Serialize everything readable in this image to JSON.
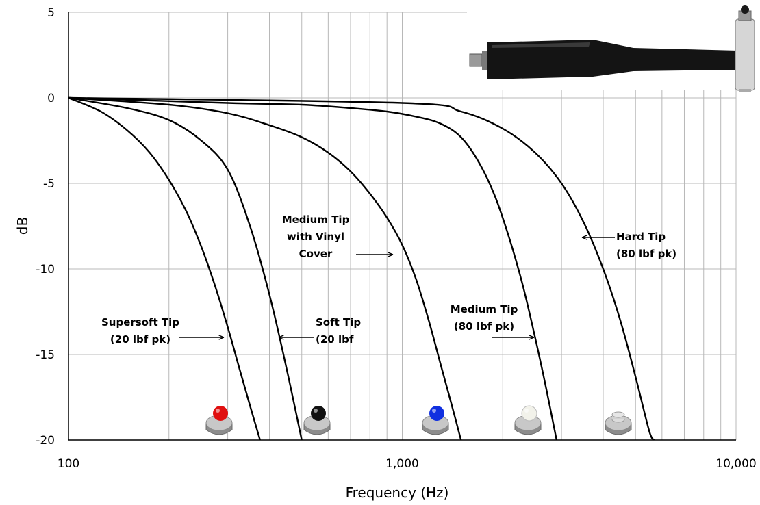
{
  "chart_data": {
    "type": "line",
    "xlabel": "Frequency (Hz)",
    "ylabel": "dB",
    "xscale": "log",
    "xlim": [
      100,
      10000
    ],
    "ylim": [
      -20,
      5
    ],
    "x_tick_labels": [
      "100",
      "1,000",
      "10,000"
    ],
    "y_tick_labels": [
      "5",
      "0",
      "-5",
      "-10",
      "-15",
      "-20"
    ],
    "grid": true,
    "series": [
      {
        "key": "supersoft",
        "label": [
          "Supersoft Tip",
          "(20 lbf pk)"
        ],
        "tip_color": "#e01010",
        "points": [
          [
            100,
            0
          ],
          [
            125,
            -0.8
          ],
          [
            150,
            -1.9
          ],
          [
            175,
            -3.2
          ],
          [
            200,
            -4.8
          ],
          [
            225,
            -6.6
          ],
          [
            250,
            -8.7
          ],
          [
            275,
            -11
          ],
          [
            300,
            -13.4
          ],
          [
            325,
            -15.8
          ],
          [
            350,
            -18
          ],
          [
            375,
            -20
          ]
        ]
      },
      {
        "key": "soft",
        "label": [
          "Soft Tip",
          "(20 lbf"
        ],
        "tip_color": "#111111",
        "points": [
          [
            100,
            0
          ],
          [
            150,
            -0.6
          ],
          [
            200,
            -1.3
          ],
          [
            250,
            -2.5
          ],
          [
            300,
            -4.2
          ],
          [
            350,
            -7.5
          ],
          [
            400,
            -11.5
          ],
          [
            450,
            -15.8
          ],
          [
            500,
            -20
          ]
        ]
      },
      {
        "key": "vinyl",
        "label": [
          "Medium Tip",
          "with Vinyl",
          "Cover"
        ],
        "tip_color": "#1030e0",
        "points": [
          [
            100,
            0
          ],
          [
            200,
            -0.4
          ],
          [
            300,
            -0.9
          ],
          [
            400,
            -1.6
          ],
          [
            500,
            -2.3
          ],
          [
            600,
            -3.2
          ],
          [
            700,
            -4.3
          ],
          [
            800,
            -5.6
          ],
          [
            900,
            -7
          ],
          [
            1000,
            -8.6
          ],
          [
            1100,
            -10.6
          ],
          [
            1200,
            -13
          ],
          [
            1300,
            -15.5
          ],
          [
            1400,
            -17.8
          ],
          [
            1500,
            -20
          ]
        ]
      },
      {
        "key": "medium",
        "label": [
          "Medium Tip",
          "(80 lbf pk)"
        ],
        "tip_color": "#f2f2ea",
        "points": [
          [
            100,
            0
          ],
          [
            300,
            -0.3
          ],
          [
            500,
            -0.4
          ],
          [
            700,
            -0.6
          ],
          [
            900,
            -0.8
          ],
          [
            1100,
            -1.1
          ],
          [
            1300,
            -1.5
          ],
          [
            1500,
            -2.3
          ],
          [
            1700,
            -3.8
          ],
          [
            1900,
            -5.8
          ],
          [
            2100,
            -8.3
          ],
          [
            2300,
            -11
          ],
          [
            2500,
            -14
          ],
          [
            2700,
            -17
          ],
          [
            2900,
            -20
          ]
        ]
      },
      {
        "key": "hard",
        "label": [
          "Hard Tip",
          "(80 lbf pk)"
        ],
        "tip_color": "#b8b8b8",
        "points": [
          [
            100,
            0
          ],
          [
            1000,
            -0.3
          ],
          [
            1500,
            -0.8
          ],
          [
            2000,
            -1.8
          ],
          [
            2500,
            -3.2
          ],
          [
            3000,
            -5
          ],
          [
            3500,
            -7.3
          ],
          [
            4000,
            -10
          ],
          [
            4500,
            -13
          ],
          [
            5000,
            -16.3
          ],
          [
            5500,
            -19.5
          ],
          [
            5700,
            -20
          ]
        ]
      }
    ]
  }
}
